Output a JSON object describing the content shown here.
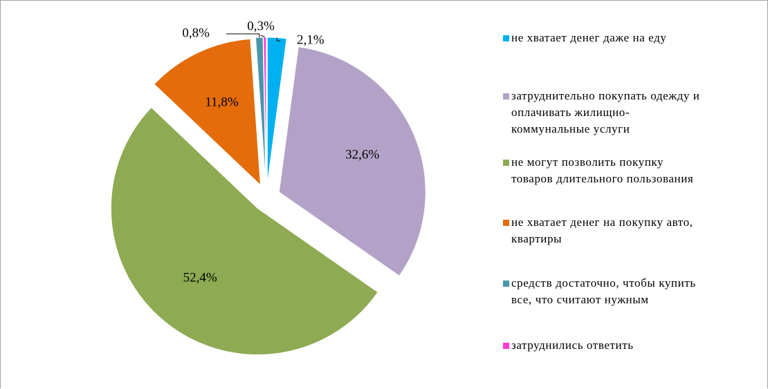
{
  "chart_data": {
    "type": "pie",
    "categories": [
      "не хватает денег даже на еду",
      "затруднительно покупать одежду и оплачивать жилищно-коммунальные услуги",
      "не могут позволить покупку товаров длительного пользования",
      "не хватает денег на покупку авто, квартиры",
      "средств достаточно, чтобы купить все, что считают нужным",
      "затруднились ответить"
    ],
    "values": [
      2.1,
      32.6,
      52.4,
      11.8,
      0.8,
      0.3
    ],
    "value_labels": [
      "2,1%",
      "32,6%",
      "52,4%",
      "11,8%",
      "0,8%",
      "0,3%"
    ],
    "colors": [
      "#00b0f0",
      "#b3a2c7",
      "#8eaa52",
      "#e46c0a",
      "#4a96ab",
      "#ff3ccf"
    ],
    "legend": "right"
  }
}
